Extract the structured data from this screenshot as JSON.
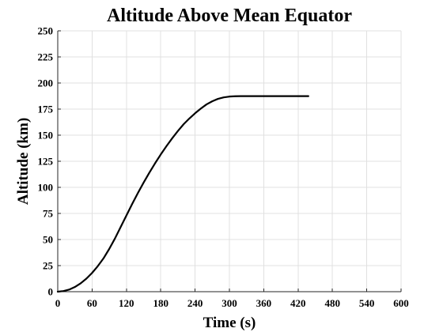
{
  "chart_data": {
    "type": "line",
    "title": "Altitude Above Mean Equator",
    "xlabel": "Time (s)",
    "ylabel": "Altitude (km)",
    "xlim": [
      0,
      600
    ],
    "ylim": [
      0,
      250
    ],
    "xticks": [
      0,
      60,
      120,
      180,
      240,
      300,
      360,
      420,
      480,
      540,
      600
    ],
    "yticks": [
      0,
      25,
      50,
      75,
      100,
      125,
      150,
      175,
      200,
      225,
      250
    ],
    "grid": true,
    "series": [
      {
        "color": "#000000",
        "x": [
          0,
          10,
          20,
          30,
          40,
          50,
          60,
          70,
          80,
          90,
          100,
          110,
          120,
          130,
          140,
          150,
          160,
          170,
          180,
          190,
          200,
          210,
          220,
          230,
          240,
          250,
          260,
          270,
          280,
          290,
          300,
          310,
          320,
          330,
          340,
          360,
          380,
          400,
          420,
          438
        ],
        "y": [
          0,
          0.6,
          2,
          4.5,
          8,
          12.5,
          18,
          24.5,
          32,
          41,
          51,
          62,
          73,
          84,
          94.5,
          104.5,
          114,
          123,
          131.5,
          139.5,
          147,
          154,
          160.5,
          166,
          171,
          175.5,
          179.5,
          182.5,
          184.8,
          186.2,
          187,
          187.3,
          187.4,
          187.4,
          187.4,
          187.4,
          187.4,
          187.4,
          187.4,
          187.4
        ]
      }
    ]
  }
}
